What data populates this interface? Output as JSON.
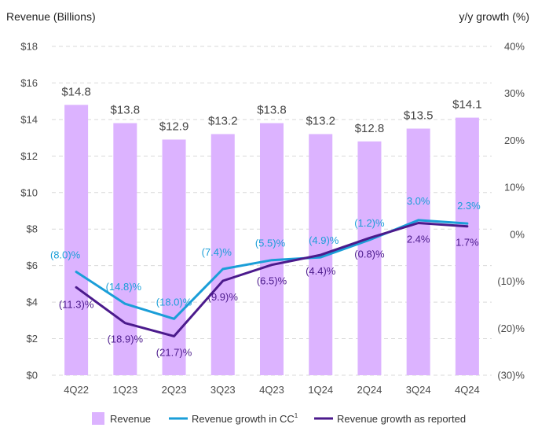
{
  "chart_data": {
    "type": "bar",
    "left_axis_title": "Revenue (Billions)",
    "right_axis_title": "y/y growth (%)",
    "categories": [
      "4Q22",
      "1Q23",
      "2Q23",
      "3Q23",
      "4Q23",
      "1Q24",
      "2Q24",
      "3Q24",
      "4Q24"
    ],
    "revenue": {
      "name": "Revenue",
      "values": [
        14.8,
        13.8,
        12.9,
        13.2,
        13.8,
        13.2,
        12.8,
        13.5,
        14.1
      ],
      "labels": [
        "$14.8",
        "$13.8",
        "$12.9",
        "$13.2",
        "$13.8",
        "$13.2",
        "$12.8",
        "$13.5",
        "$14.1"
      ]
    },
    "growth_cc": {
      "name": "Revenue growth in CC",
      "superscript": "1",
      "values": [
        -8.0,
        -14.8,
        -18.0,
        -7.4,
        -5.5,
        -4.9,
        -1.2,
        3.0,
        2.3
      ],
      "labels": [
        "(8.0)%",
        "(14.8)%",
        "(18.0)%",
        "(7.4)%",
        "(5.5)%",
        "(4.9)%",
        "(1.2)%",
        "3.0%",
        "2.3%"
      ]
    },
    "growth_reported": {
      "name": "Revenue growth as reported",
      "values": [
        -11.3,
        -18.9,
        -21.7,
        -9.9,
        -6.5,
        -4.4,
        -0.8,
        2.4,
        1.7
      ],
      "labels": [
        "(11.3)%",
        "(18.9)%",
        "(21.7)%",
        "(9.9)%",
        "(6.5)%",
        "(4.4)%",
        "(0.8)%",
        "2.4%",
        "1.7%"
      ]
    },
    "left_axis": {
      "min": 0,
      "max": 18,
      "ticks": [
        0,
        2,
        4,
        6,
        8,
        10,
        12,
        14,
        16,
        18
      ],
      "tick_labels": [
        "$0",
        "$2",
        "$4",
        "$6",
        "$8",
        "$10",
        "$12",
        "$14",
        "$16",
        "$18"
      ]
    },
    "right_axis": {
      "min": -30,
      "max": 40,
      "ticks": [
        -30,
        -20,
        -10,
        0,
        10,
        20,
        30,
        40
      ],
      "tick_labels": [
        "(30)%",
        "(20)%",
        "(10)%",
        "0%",
        "10%",
        "20%",
        "30%",
        "40%"
      ]
    },
    "grid": "horizontal-dashed",
    "legend_position": "bottom",
    "colors": {
      "bar": "#dcb3ff",
      "cc_line": "#1a9ed8",
      "reported_line": "#4b1a8c",
      "text": "#4a4a4a",
      "grid": "#d9d9d9"
    }
  }
}
